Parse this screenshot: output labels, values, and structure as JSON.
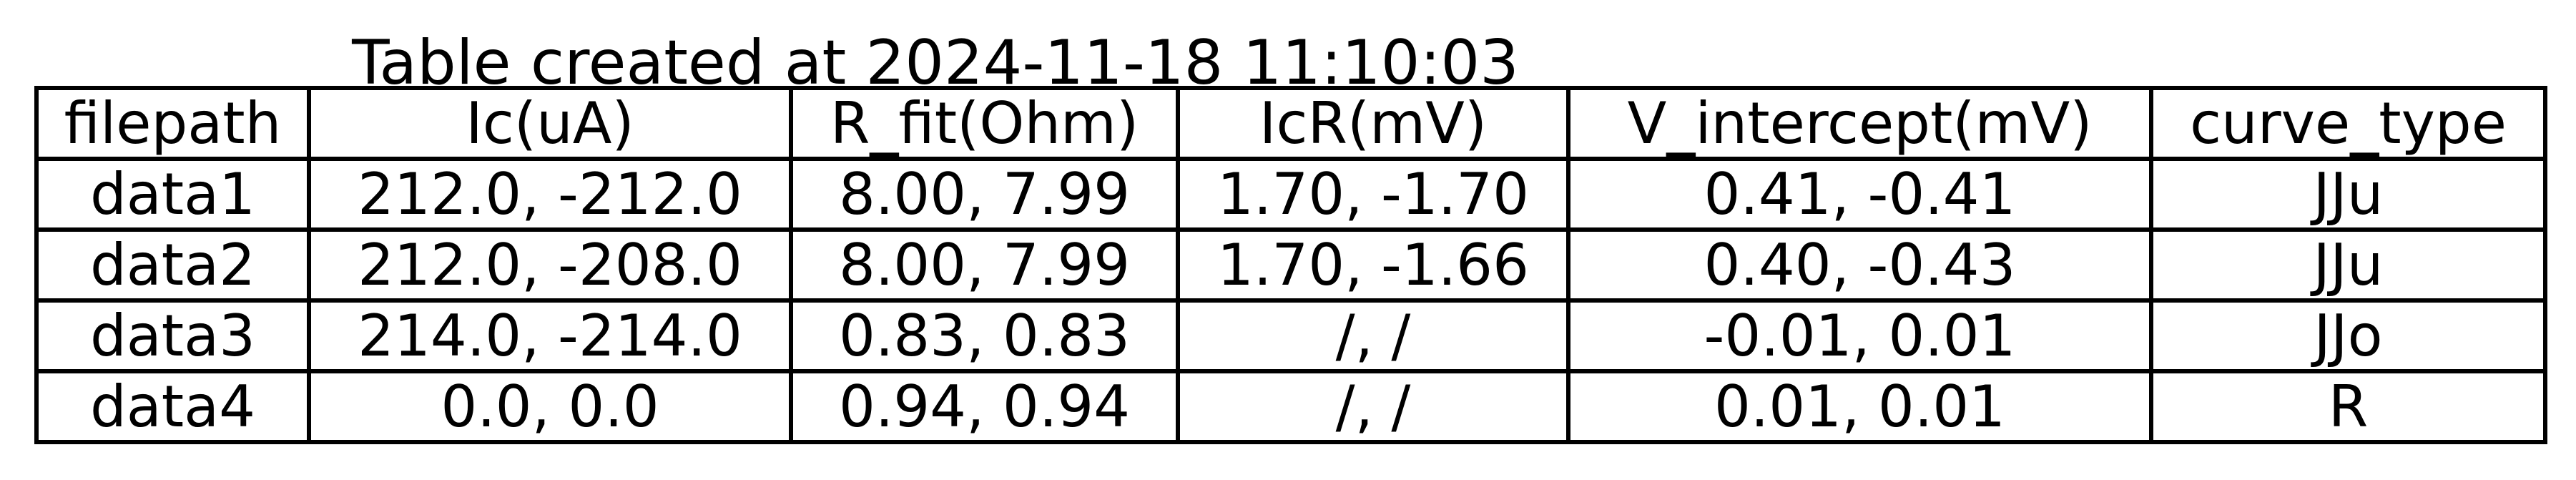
{
  "chart_data": {
    "type": "table",
    "title": "Table created at 2024-11-18 11:10:03",
    "columns": [
      "filepath",
      "Ic(uA)",
      "R_fit(Ohm)",
      "IcR(mV)",
      "V_intercept(mV)",
      "curve_type"
    ],
    "rows": [
      [
        "data1",
        "212.0, -212.0",
        "8.00, 7.99",
        "1.70, -1.70",
        "0.41, -0.41",
        "JJu"
      ],
      [
        "data2",
        "212.0, -208.0",
        "8.00, 7.99",
        "1.70, -1.66",
        "0.40, -0.43",
        "JJu"
      ],
      [
        "data3",
        "214.0, -214.0",
        "0.83, 0.83",
        "/, /",
        "-0.01, 0.01",
        "JJo"
      ],
      [
        "data4",
        "0.0, 0.0",
        "0.94, 0.94",
        "/, /",
        "0.01, 0.01",
        "R"
      ]
    ]
  }
}
